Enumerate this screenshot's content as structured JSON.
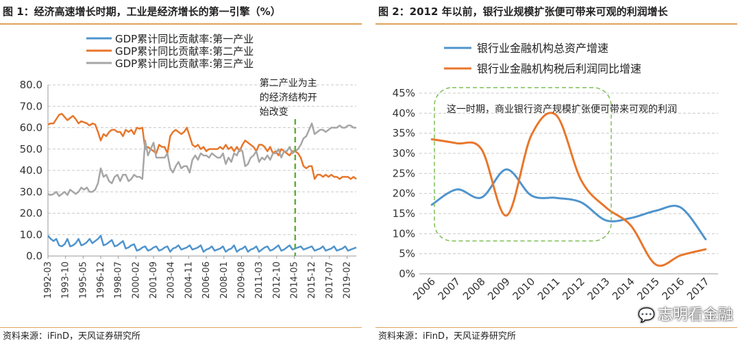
{
  "left": {
    "title": "图 1：经济高速增长时期，工业是经济增长的第一引擎（%）",
    "source": "资料来源：iFinD，天风证券研究所"
  },
  "right": {
    "title": "图 2：2012 年以前，银行业规模扩张便可带来可观的利润增长",
    "source": "资料来源：iFinD，天风证券研究所"
  },
  "watermark": {
    "text": "志明看金融",
    "icon": "wechat-icon"
  },
  "chart_data": [
    {
      "type": "line",
      "ylim": [
        0,
        80
      ],
      "yticks": [
        "0.0",
        "10.0",
        "20.0",
        "30.0",
        "40.0",
        "50.0",
        "60.0",
        "70.0",
        "80.0"
      ],
      "xticks": [
        "1992-03",
        "1993-10",
        "1995-05",
        "1996-12",
        "1998-07",
        "2000-02",
        "2001-09",
        "2003-04",
        "2004-11",
        "2006-06",
        "2008-01",
        "2009-08",
        "2011-03",
        "2012-10",
        "2014-05",
        "2015-12",
        "2017-07",
        "2019-02"
      ],
      "x_start": "1992-03",
      "x_end": "2019-12",
      "grid": "horizontal-dashed",
      "legend_position": "top-left",
      "series": [
        {
          "name": "GDP累计同比贡献率:第一产业",
          "color": "#4f94cd",
          "x": [
            "1992-03",
            "1992-06",
            "1992-09",
            "1992-12",
            "1993-03",
            "1993-06",
            "1993-09",
            "1993-12",
            "1994-03",
            "1994-06",
            "1994-09",
            "1994-12",
            "1995-03",
            "1995-06",
            "1995-09",
            "1995-12",
            "1996-03",
            "1996-06",
            "1996-09",
            "1996-12",
            "1997-03",
            "1997-06",
            "1997-09",
            "1997-12",
            "1998-03",
            "1998-06",
            "1998-09",
            "1998-12",
            "1999-03",
            "1999-06",
            "1999-09",
            "1999-12",
            "2000-03",
            "2000-06",
            "2000-09",
            "2000-12",
            "2001-03",
            "2001-06",
            "2001-09",
            "2001-12",
            "2002-03",
            "2002-06",
            "2002-09",
            "2002-12",
            "2003-03",
            "2003-06",
            "2003-09",
            "2003-12",
            "2004-03",
            "2004-06",
            "2004-09",
            "2004-12",
            "2005-03",
            "2005-06",
            "2005-09",
            "2005-12",
            "2006-03",
            "2006-06",
            "2006-09",
            "2006-12",
            "2007-03",
            "2007-06",
            "2007-09",
            "2007-12",
            "2008-03",
            "2008-06",
            "2008-09",
            "2008-12",
            "2009-03",
            "2009-06",
            "2009-09",
            "2009-12",
            "2010-03",
            "2010-06",
            "2010-09",
            "2010-12",
            "2011-03",
            "2011-06",
            "2011-09",
            "2011-12",
            "2012-03",
            "2012-06",
            "2012-09",
            "2012-12",
            "2013-03",
            "2013-06",
            "2013-09",
            "2013-12",
            "2014-03",
            "2014-06",
            "2014-09",
            "2014-12",
            "2015-03",
            "2015-06",
            "2015-09",
            "2015-12",
            "2016-03",
            "2016-06",
            "2016-09",
            "2016-12",
            "2017-03",
            "2017-06",
            "2017-09",
            "2017-12",
            "2018-03",
            "2018-06",
            "2018-09",
            "2018-12",
            "2019-03",
            "2019-06",
            "2019-09",
            "2019-12"
          ],
          "values": [
            9.5,
            8,
            7,
            8,
            5,
            4.5,
            5.5,
            8,
            4.5,
            5,
            6,
            8,
            5,
            5.5,
            6.5,
            8,
            6,
            7,
            8,
            9.5,
            5,
            5.5,
            6.5,
            7.5,
            4.5,
            5,
            6,
            7,
            3.5,
            4,
            5,
            5.5,
            2.5,
            3,
            4,
            4.5,
            2.5,
            3,
            4,
            4.5,
            2.5,
            3,
            4,
            4.5,
            2,
            3.5,
            4,
            5,
            3,
            3.5,
            4,
            5,
            3,
            3.5,
            4,
            5,
            2,
            3,
            3.5,
            4.5,
            2.5,
            3,
            3.5,
            4.5,
            2,
            3,
            3.5,
            5,
            2,
            3,
            3.5,
            4.5,
            2,
            3,
            3.5,
            4.5,
            2,
            3,
            4,
            4.5,
            2.5,
            3,
            4,
            5,
            2.5,
            3,
            4,
            5,
            3,
            3.5,
            4,
            4.5,
            3,
            3.5,
            4,
            4.5,
            2.5,
            3,
            3.5,
            4.5,
            2.5,
            3,
            3.5,
            4.5,
            2.5,
            3,
            3.5,
            4.5,
            2.5,
            3,
            3.5,
            4
          ]
        },
        {
          "name": "GDP累计同比贡献率:第二产业",
          "color": "#e8762b",
          "x": [
            "1992-03",
            "1992-06",
            "1992-09",
            "1992-12",
            "1993-03",
            "1993-06",
            "1993-09",
            "1993-12",
            "1994-03",
            "1994-06",
            "1994-09",
            "1994-12",
            "1995-03",
            "1995-06",
            "1995-09",
            "1995-12",
            "1996-03",
            "1996-06",
            "1996-09",
            "1996-12",
            "1997-03",
            "1997-06",
            "1997-09",
            "1997-12",
            "1998-03",
            "1998-06",
            "1998-09",
            "1998-12",
            "1999-03",
            "1999-06",
            "1999-09",
            "1999-12",
            "2000-03",
            "2000-06",
            "2000-09",
            "2000-12",
            "2001-03",
            "2001-06",
            "2001-09",
            "2001-12",
            "2002-03",
            "2002-06",
            "2002-09",
            "2002-12",
            "2003-03",
            "2003-06",
            "2003-09",
            "2003-12",
            "2004-03",
            "2004-06",
            "2004-09",
            "2004-12",
            "2005-03",
            "2005-06",
            "2005-09",
            "2005-12",
            "2006-03",
            "2006-06",
            "2006-09",
            "2006-12",
            "2007-03",
            "2007-06",
            "2007-09",
            "2007-12",
            "2008-03",
            "2008-06",
            "2008-09",
            "2008-12",
            "2009-03",
            "2009-06",
            "2009-09",
            "2009-12",
            "2010-03",
            "2010-06",
            "2010-09",
            "2010-12",
            "2011-03",
            "2011-06",
            "2011-09",
            "2011-12",
            "2012-03",
            "2012-06",
            "2012-09",
            "2012-12",
            "2013-03",
            "2013-06",
            "2013-09",
            "2013-12",
            "2014-03",
            "2014-06",
            "2014-09",
            "2014-12",
            "2015-03",
            "2015-06",
            "2015-09",
            "2015-12",
            "2016-03",
            "2016-06",
            "2016-09",
            "2016-12",
            "2017-03",
            "2017-06",
            "2017-09",
            "2017-12",
            "2018-03",
            "2018-06",
            "2018-09",
            "2018-12",
            "2019-03",
            "2019-06",
            "2019-09",
            "2019-12"
          ],
          "values": [
            61.5,
            62,
            62,
            64,
            66,
            66.5,
            65,
            63.5,
            64.5,
            65.5,
            64,
            62,
            63,
            62.5,
            62,
            61,
            62,
            61.5,
            58,
            54,
            57,
            56,
            58,
            59,
            59,
            58,
            58,
            56,
            59,
            58,
            59,
            57,
            60,
            59.5,
            60,
            50,
            51,
            50,
            49,
            48,
            52,
            51,
            51,
            48,
            56,
            58,
            59,
            58,
            57,
            58,
            60,
            56,
            52,
            51,
            52,
            50,
            51,
            49,
            50,
            50,
            50,
            50,
            51,
            50,
            52,
            50,
            51,
            49,
            51,
            49,
            52,
            54,
            53,
            52,
            51,
            49,
            52,
            52,
            51,
            49,
            51,
            48,
            49,
            47,
            50,
            49,
            48,
            47,
            49,
            49,
            48,
            46,
            42,
            41,
            42,
            42,
            36,
            38,
            38,
            37,
            38,
            37,
            38,
            37,
            37,
            36,
            37,
            37,
            37,
            36,
            37,
            36
          ]
        },
        {
          "name": "GDP累计同比贡献率:第三产业",
          "color": "#a6a6a6",
          "x": [
            "1992-03",
            "1992-06",
            "1992-09",
            "1992-12",
            "1993-03",
            "1993-06",
            "1993-09",
            "1993-12",
            "1994-03",
            "1994-06",
            "1994-09",
            "1994-12",
            "1995-03",
            "1995-06",
            "1995-09",
            "1995-12",
            "1996-03",
            "1996-06",
            "1996-09",
            "1996-12",
            "1997-03",
            "1997-06",
            "1997-09",
            "1997-12",
            "1998-03",
            "1998-06",
            "1998-09",
            "1998-12",
            "1999-03",
            "1999-06",
            "1999-09",
            "1999-12",
            "2000-03",
            "2000-06",
            "2000-09",
            "2000-12",
            "2001-03",
            "2001-06",
            "2001-09",
            "2001-12",
            "2002-03",
            "2002-06",
            "2002-09",
            "2002-12",
            "2003-03",
            "2003-06",
            "2003-09",
            "2003-12",
            "2004-03",
            "2004-06",
            "2004-09",
            "2004-12",
            "2005-03",
            "2005-06",
            "2005-09",
            "2005-12",
            "2006-03",
            "2006-06",
            "2006-09",
            "2006-12",
            "2007-03",
            "2007-06",
            "2007-09",
            "2007-12",
            "2008-03",
            "2008-06",
            "2008-09",
            "2008-12",
            "2009-03",
            "2009-06",
            "2009-09",
            "2009-12",
            "2010-03",
            "2010-06",
            "2010-09",
            "2010-12",
            "2011-03",
            "2011-06",
            "2011-09",
            "2011-12",
            "2012-03",
            "2012-06",
            "2012-09",
            "2012-12",
            "2013-03",
            "2013-06",
            "2013-09",
            "2013-12",
            "2014-03",
            "2014-06",
            "2014-09",
            "2014-12",
            "2015-03",
            "2015-06",
            "2015-09",
            "2015-12",
            "2016-03",
            "2016-06",
            "2016-09",
            "2016-12",
            "2017-03",
            "2017-06",
            "2017-09",
            "2017-12",
            "2018-03",
            "2018-06",
            "2018-09",
            "2018-12",
            "2019-03",
            "2019-06",
            "2019-09",
            "2019-12"
          ],
          "values": [
            29,
            28.5,
            29,
            30,
            28,
            29,
            30,
            28.5,
            31,
            30,
            29,
            30,
            32,
            31,
            32,
            30,
            30,
            31,
            34,
            41,
            37,
            38,
            35,
            34,
            37,
            38,
            35,
            38,
            38,
            35,
            36,
            38,
            37,
            37,
            36,
            54,
            47,
            50,
            53,
            46,
            46,
            46,
            46,
            48,
            41,
            39,
            42,
            44,
            41,
            42,
            42,
            39,
            45,
            47,
            45,
            48,
            47,
            47,
            46,
            48,
            47,
            46,
            46,
            48,
            43,
            46,
            44,
            48,
            47,
            50,
            49,
            42,
            43,
            46,
            47,
            49,
            44,
            46,
            45,
            47,
            45,
            48,
            48,
            50,
            46,
            49,
            49,
            51,
            48,
            49,
            50,
            52,
            55,
            56,
            59,
            62,
            57,
            58,
            59,
            59,
            58,
            59,
            60,
            60,
            60,
            61,
            60,
            60,
            61,
            61,
            60,
            60
          ]
        }
      ],
      "annotations": [
        {
          "text": "第二产业为主的经济结构开始改变",
          "x": "2014-06"
        }
      ]
    },
    {
      "type": "line",
      "ylim": [
        0,
        45
      ],
      "yticks": [
        "0%",
        "5%",
        "10%",
        "15%",
        "20%",
        "25%",
        "30%",
        "35%",
        "40%",
        "45%"
      ],
      "categories": [
        "2006",
        "2007",
        "2008",
        "2009",
        "2010",
        "2011",
        "2012",
        "2013",
        "2014",
        "2015",
        "2016",
        "2017"
      ],
      "grid": "horizontal-dashed",
      "legend_position": "top-left",
      "series": [
        {
          "name": "银行业金融机构总资产增速",
          "color": "#4f94cd",
          "values": [
            17.2,
            21.0,
            19.0,
            26.0,
            19.5,
            18.9,
            17.8,
            13.3,
            13.9,
            15.7,
            16.5,
            8.6
          ]
        },
        {
          "name": "银行业金融机构税后利润同比增速",
          "color": "#e8762b",
          "values": [
            33.5,
            32.5,
            31.0,
            14.5,
            34.5,
            39.5,
            23.3,
            16.5,
            12.0,
            2.3,
            4.6,
            6.1
          ]
        }
      ],
      "annotations": [
        {
          "text": "这一时期，商业银行资产规模扩张便可带来可观的利润"
        }
      ]
    }
  ]
}
